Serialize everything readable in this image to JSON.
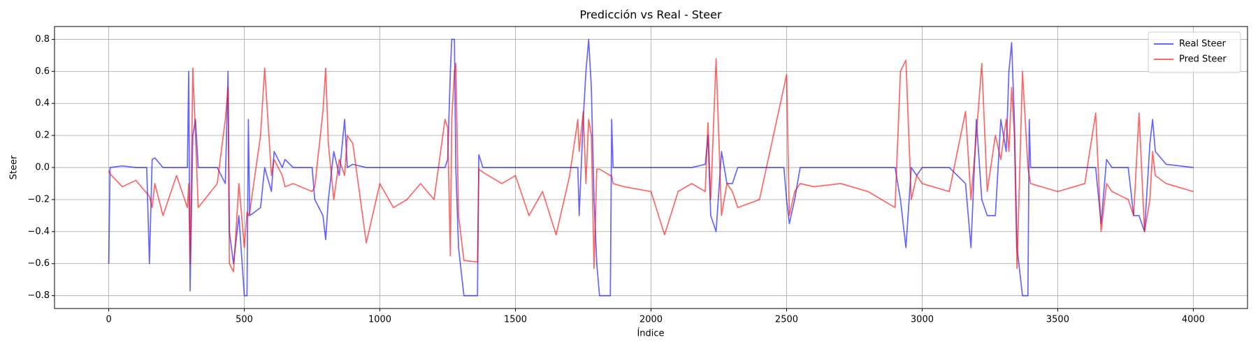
{
  "chart_data": {
    "type": "line",
    "title": "Predicción vs Real - Steer",
    "x_label": "Índice",
    "y_label": "Steer",
    "x": [
      0,
      5,
      50,
      100,
      140,
      150,
      160,
      170,
      200,
      250,
      290,
      295,
      300,
      310,
      320,
      330,
      400,
      430,
      440,
      445,
      460,
      480,
      500,
      510,
      515,
      520,
      560,
      575,
      600,
      610,
      640,
      650,
      680,
      750,
      760,
      790,
      800,
      810,
      830,
      850,
      870,
      880,
      900,
      950,
      1000,
      1050,
      1100,
      1150,
      1200,
      1240,
      1250,
      1260,
      1265,
      1275,
      1280,
      1290,
      1310,
      1360,
      1365,
      1380,
      1450,
      1500,
      1550,
      1600,
      1650,
      1700,
      1730,
      1735,
      1750,
      1760,
      1770,
      1780,
      1790,
      1800,
      1810,
      1850,
      1855,
      1860,
      1900,
      2000,
      2050,
      2100,
      2150,
      2200,
      2210,
      2220,
      2240,
      2260,
      2280,
      2300,
      2320,
      2400,
      2490,
      2500,
      2510,
      2530,
      2550,
      2600,
      2700,
      2800,
      2900,
      2920,
      2940,
      2960,
      2980,
      3000,
      3100,
      3160,
      3180,
      3200,
      3220,
      3240,
      3270,
      3290,
      3310,
      3320,
      3330,
      3340,
      3350,
      3370,
      3390,
      3395,
      3400,
      3500,
      3600,
      3640,
      3660,
      3680,
      3700,
      3760,
      3780,
      3800,
      3820,
      3840,
      3850,
      3860,
      3900,
      4000
    ],
    "series": [
      {
        "name": "Real Steer",
        "color": "#0000ff",
        "values": [
          -0.6,
          0,
          0.01,
          0,
          0,
          -0.6,
          0.05,
          0.06,
          0,
          0,
          0,
          0.6,
          -0.77,
          0.2,
          0.3,
          0,
          0,
          -0.1,
          0.6,
          -0.4,
          -0.6,
          -0.3,
          -0.8,
          -0.8,
          0.3,
          -0.3,
          -0.25,
          0,
          -0.15,
          0.1,
          0,
          0.05,
          0,
          0,
          -0.2,
          -0.3,
          -0.45,
          -0.2,
          0.1,
          -0.05,
          0.3,
          0,
          0.02,
          0,
          0,
          0,
          0,
          0,
          0,
          0,
          0.05,
          0.6,
          0.8,
          0.8,
          0,
          -0.5,
          -0.8,
          -0.8,
          0.08,
          0,
          0,
          0,
          0,
          0,
          0,
          0,
          0,
          -0.3,
          0.3,
          0.6,
          0.8,
          0.5,
          -0.2,
          -0.6,
          -0.8,
          -0.8,
          0.3,
          0,
          0,
          0,
          0,
          0,
          0,
          0.02,
          0.2,
          -0.3,
          -0.4,
          0.1,
          -0.1,
          -0.1,
          0,
          0,
          0,
          -0.2,
          -0.35,
          -0.2,
          0,
          0,
          0,
          0,
          0,
          -0.2,
          -0.5,
          0,
          -0.05,
          0,
          0,
          -0.1,
          -0.5,
          0.3,
          -0.2,
          -0.3,
          -0.3,
          0.3,
          0.1,
          0.6,
          0.78,
          0.3,
          -0.5,
          -0.8,
          -0.8,
          0.3,
          0,
          0,
          0,
          0,
          -0.35,
          0.05,
          0,
          0,
          -0.3,
          -0.3,
          -0.4,
          0.15,
          0.3,
          0.1,
          0.02,
          0
        ]
      },
      {
        "name": "Pred Steer",
        "color": "#ff0000",
        "values": [
          -0.02,
          -0.04,
          -0.12,
          -0.08,
          -0.16,
          -0.18,
          -0.25,
          -0.1,
          -0.3,
          -0.05,
          -0.25,
          -0.1,
          -0.6,
          0.62,
          0.2,
          -0.25,
          -0.1,
          0.3,
          0.5,
          -0.6,
          -0.65,
          -0.1,
          -0.5,
          -0.28,
          -0.3,
          -0.28,
          0.2,
          0.62,
          -0.05,
          0.05,
          -0.05,
          -0.12,
          -0.1,
          -0.15,
          -0.12,
          0.35,
          0.62,
          0.15,
          -0.2,
          0.05,
          -0.05,
          0.2,
          0.15,
          -0.47,
          -0.1,
          -0.25,
          -0.2,
          -0.1,
          -0.2,
          0.3,
          0.25,
          -0.55,
          0.3,
          0.6,
          0.65,
          -0.3,
          -0.58,
          -0.59,
          -0.01,
          -0.03,
          -0.1,
          -0.05,
          -0.3,
          -0.15,
          -0.42,
          -0.05,
          0.3,
          0.1,
          0.35,
          -0.1,
          0.3,
          0.2,
          -0.63,
          -0.01,
          -0.01,
          -0.05,
          -0.05,
          -0.1,
          -0.12,
          -0.15,
          -0.42,
          -0.15,
          -0.1,
          -0.15,
          0.28,
          -0.2,
          0.68,
          -0.3,
          -0.1,
          -0.15,
          -0.25,
          -0.2,
          0.5,
          0.58,
          -0.3,
          -0.15,
          -0.1,
          -0.12,
          -0.1,
          -0.15,
          -0.25,
          0.6,
          0.67,
          -0.2,
          -0.05,
          -0.1,
          -0.15,
          0.35,
          -0.2,
          0.2,
          0.65,
          -0.15,
          0.2,
          0.05,
          0.3,
          0.1,
          0.5,
          0.2,
          -0.63,
          0.6,
          0,
          -0.05,
          -0.1,
          -0.15,
          -0.1,
          0.34,
          -0.4,
          -0.1,
          -0.15,
          -0.2,
          -0.3,
          0.34,
          -0.4,
          -0.2,
          0.1,
          -0.05,
          -0.1,
          -0.15
        ]
      }
    ],
    "xlim": [
      -200,
      4200
    ],
    "ylim": [
      -0.88,
      0.88
    ],
    "xticks": [
      0,
      500,
      1000,
      1500,
      2000,
      2500,
      3000,
      3500,
      4000
    ],
    "yticks": [
      {
        "value": -0.8,
        "label": "−0.8"
      },
      {
        "value": -0.6,
        "label": "−0.6"
      },
      {
        "value": -0.4,
        "label": "−0.4"
      },
      {
        "value": -0.2,
        "label": "−0.2"
      },
      {
        "value": 0,
        "label": "0.0"
      },
      0.2,
      0.4,
      0.6,
      0.8
    ],
    "grid": true,
    "legend": "upper right"
  }
}
